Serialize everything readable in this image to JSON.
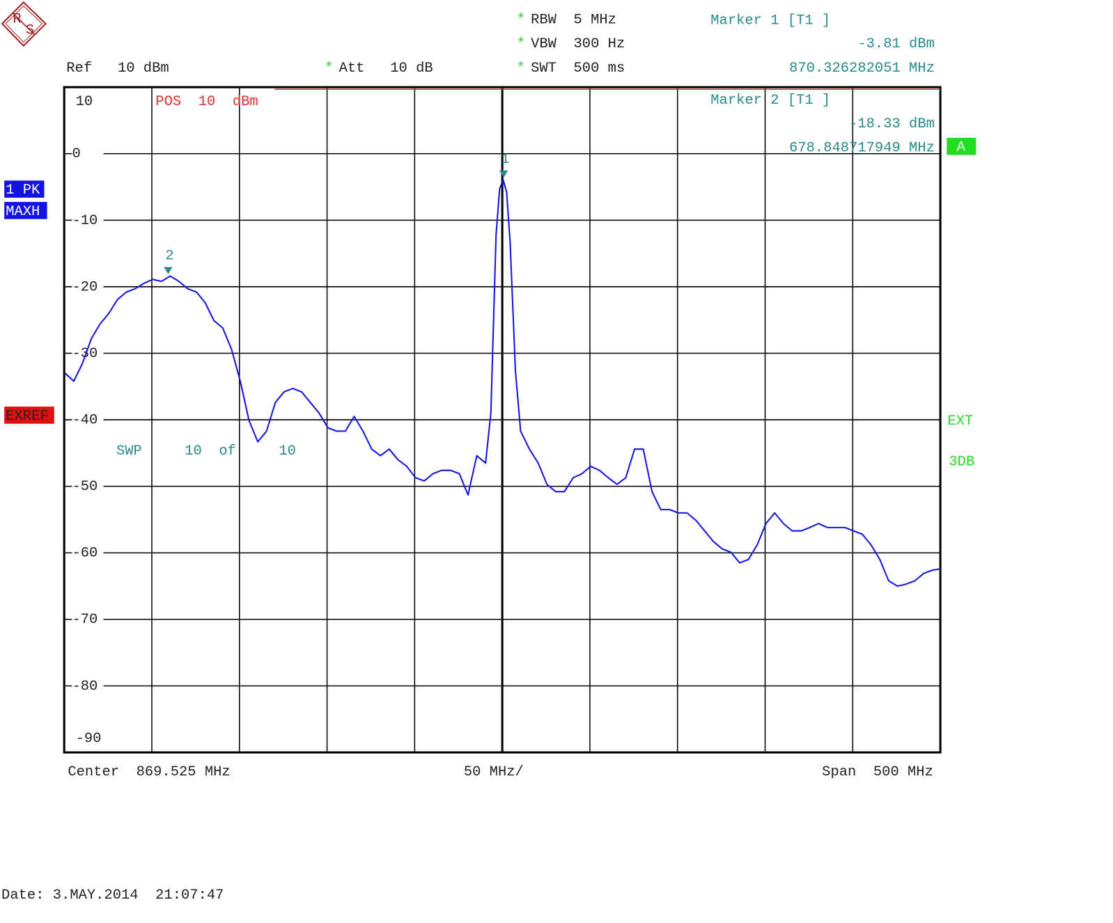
{
  "chart_data": {
    "type": "line",
    "logo": [
      "R",
      "S"
    ],
    "flag": "*",
    "ref_label": "Ref   10 dBm",
    "att_label": "Att   10 dB",
    "rbw_label": "RBW  5 MHz",
    "vbw_label": "VBW  300 Hz",
    "swt_label": "SWT  500 ms",
    "pos_label": "POS  10  dBm",
    "trace_labels": [
      "1 PK",
      "MAXH"
    ],
    "exref_label": "EXREF",
    "screen_label": "A",
    "status_labels": [
      "EXT",
      "3DB"
    ],
    "sweep_label": "SWP     10  of     10",
    "center_label": "Center  869.525 MHz",
    "div_label": "50 MHz/",
    "span_label": "Span  500 MHz",
    "date_label": "Date: 3.MAY.2014  21:07:47",
    "ylim": [
      -90,
      10
    ],
    "yticks": [
      10,
      0,
      -10,
      -20,
      -30,
      -40,
      -50,
      -60,
      -70,
      -80,
      -90
    ],
    "xlim": [
      619.525,
      1119.525
    ],
    "xticks": [
      619.525,
      669.525,
      719.525,
      769.525,
      819.525,
      869.525,
      919.525,
      969.525,
      1019.525,
      1069.525,
      1119.525
    ],
    "ref_line": 10,
    "color": "#1414e0",
    "x": [
      620,
      625,
      630,
      635,
      640,
      645,
      650,
      655,
      660,
      665,
      670,
      675,
      680,
      685,
      690,
      695,
      700,
      705,
      710,
      715,
      720,
      725,
      730,
      735,
      740,
      745,
      750,
      755,
      760,
      765,
      770,
      775,
      780,
      785,
      790,
      795,
      800,
      805,
      810,
      815,
      820,
      825,
      830,
      835,
      840,
      845,
      850,
      855,
      860,
      863,
      866,
      868,
      870,
      872,
      874,
      877,
      880,
      885,
      890,
      895,
      900,
      905,
      910,
      915,
      920,
      925,
      930,
      935,
      940,
      945,
      950,
      955,
      960,
      965,
      970,
      975,
      980,
      985,
      990,
      995,
      1000,
      1005,
      1010,
      1015,
      1020,
      1025,
      1030,
      1035,
      1040,
      1045,
      1050,
      1055,
      1060,
      1065,
      1070,
      1075,
      1080,
      1085,
      1090,
      1095,
      1100,
      1105,
      1110,
      1115,
      1119.525
    ],
    "values": [
      -33,
      -34.2,
      -31.5,
      -27.8,
      -25.6,
      -24,
      -21.9,
      -20.8,
      -20.3,
      -19.5,
      -18.9,
      -19.2,
      -18.4,
      -19.2,
      -20.3,
      -20.8,
      -22.4,
      -25.1,
      -26.2,
      -29.4,
      -34.2,
      -40.1,
      -43.3,
      -41.7,
      -37.4,
      -35.8,
      -35.3,
      -35.8,
      -37.4,
      -39,
      -41.2,
      -41.7,
      -41.7,
      -39.5,
      -41.7,
      -44.4,
      -45.4,
      -44.4,
      -46,
      -47,
      -48.7,
      -49.2,
      -48.1,
      -47.6,
      -47.6,
      -48.1,
      -51.3,
      -45.4,
      -46.5,
      -39,
      -12.2,
      -5.3,
      -3.9,
      -5.8,
      -13.3,
      -32.6,
      -41.7,
      -44.4,
      -46.5,
      -49.7,
      -50.8,
      -50.8,
      -48.7,
      -48.1,
      -47,
      -47.6,
      -48.7,
      -49.7,
      -48.7,
      -44.4,
      -44.4,
      -50.8,
      -53.5,
      -53.5,
      -54,
      -54,
      -55.1,
      -56.7,
      -58.3,
      -59.4,
      -59.9,
      -61.5,
      -61,
      -58.8,
      -55.6,
      -54,
      -55.6,
      -56.7,
      -56.7,
      -56.2,
      -55.6,
      -56.2,
      -56.2,
      -56.2,
      -56.7,
      -57.2,
      -58.8,
      -61,
      -64.2,
      -65,
      -64.7,
      -64.2,
      -63.1,
      -62.6,
      -62.4
    ],
    "markers": [
      {
        "name": "Marker 2 [T1 ]",
        "id": "2",
        "x": 678.848717949,
        "y": -18.33,
        "x_label": "678.848717949 MHz",
        "y_label": "-18.33 dBm"
      },
      {
        "name": "Marker 1 [T1 ]",
        "id": "1",
        "x": 870.326282051,
        "y": -3.81,
        "x_label": "870.326282051 MHz",
        "y_label": "-3.81 dBm"
      }
    ]
  }
}
